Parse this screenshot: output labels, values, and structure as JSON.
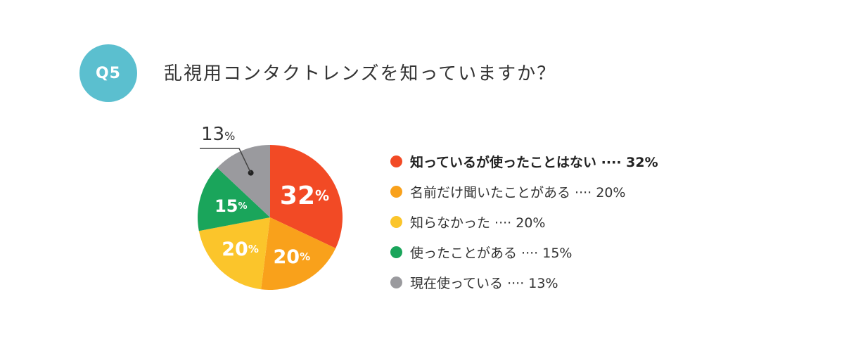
{
  "badge": "Q5",
  "question": "乱視用コンタクトレンズを知っていますか？",
  "chart_data": {
    "type": "pie",
    "series": [
      {
        "label": "知っているが使ったことはない",
        "value": 32,
        "color": "#f24a25",
        "value_label": "32",
        "legend_text": "知っているが使ったことはない ···· 32%",
        "bold": true
      },
      {
        "label": "名前だけ聞いたことがある",
        "value": 20,
        "color": "#f9a11b",
        "value_label": "20",
        "legend_text": "名前だけ聞いたことがある ···· 20%",
        "bold": false
      },
      {
        "label": "知らなかった",
        "value": 20,
        "color": "#fbc52b",
        "value_label": "20",
        "legend_text": "知らなかった ···· 20%",
        "bold": false
      },
      {
        "label": "使ったことがある",
        "value": 15,
        "color": "#1aa55b",
        "value_label": "15",
        "legend_text": "使ったことがある ···· 15%",
        "bold": false
      },
      {
        "label": "現在使っている",
        "value": 13,
        "color": "#9a9a9e",
        "value_label": "13",
        "legend_text": "現在使っている ···· 13%",
        "bold": false
      }
    ],
    "percent_suffix": "%"
  }
}
